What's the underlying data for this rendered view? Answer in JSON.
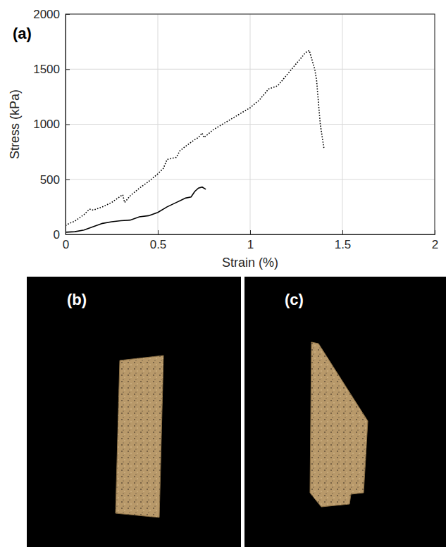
{
  "chart_data": {
    "type": "line",
    "annotations": [
      "(a)"
    ],
    "x_label": "Strain (%)",
    "y_label": "Stress (kPa)",
    "xlim": [
      0,
      2
    ],
    "xticks": [
      0,
      0.5,
      1,
      1.5,
      2
    ],
    "ylim": [
      0,
      2000
    ],
    "yticks": [
      0,
      500,
      1000,
      1500,
      2000
    ],
    "grid": true,
    "series": [
      {
        "color": "#000000",
        "line_style": "dotted",
        "x": [
          0,
          0.02,
          0.05,
          0.1,
          0.13,
          0.15,
          0.2,
          0.25,
          0.3,
          0.31,
          0.32,
          0.35,
          0.4,
          0.45,
          0.5,
          0.53,
          0.55,
          0.6,
          0.62,
          0.65,
          0.7,
          0.72,
          0.74,
          0.75,
          0.8,
          0.9,
          1.0,
          1.05,
          1.1,
          1.15,
          1.2,
          1.25,
          1.3,
          1.32,
          1.35,
          1.36,
          1.38,
          1.4
        ],
        "values": [
          80,
          100,
          120,
          180,
          230,
          220,
          250,
          290,
          350,
          360,
          290,
          350,
          420,
          480,
          550,
          600,
          680,
          700,
          760,
          800,
          860,
          880,
          920,
          880,
          950,
          1050,
          1150,
          1220,
          1320,
          1350,
          1450,
          1550,
          1650,
          1670,
          1500,
          1400,
          1000,
          780
        ]
      },
      {
        "color": "#000000",
        "line_style": "solid",
        "x": [
          0,
          0.05,
          0.1,
          0.15,
          0.2,
          0.25,
          0.3,
          0.35,
          0.4,
          0.45,
          0.5,
          0.55,
          0.6,
          0.65,
          0.68,
          0.7,
          0.72,
          0.74,
          0.76
        ],
        "values": [
          20,
          25,
          40,
          70,
          100,
          115,
          125,
          130,
          160,
          170,
          200,
          250,
          290,
          330,
          340,
          390,
          420,
          430,
          410
        ]
      }
    ]
  },
  "images": [
    {
      "label": "(b)"
    },
    {
      "label": "(c)"
    }
  ]
}
